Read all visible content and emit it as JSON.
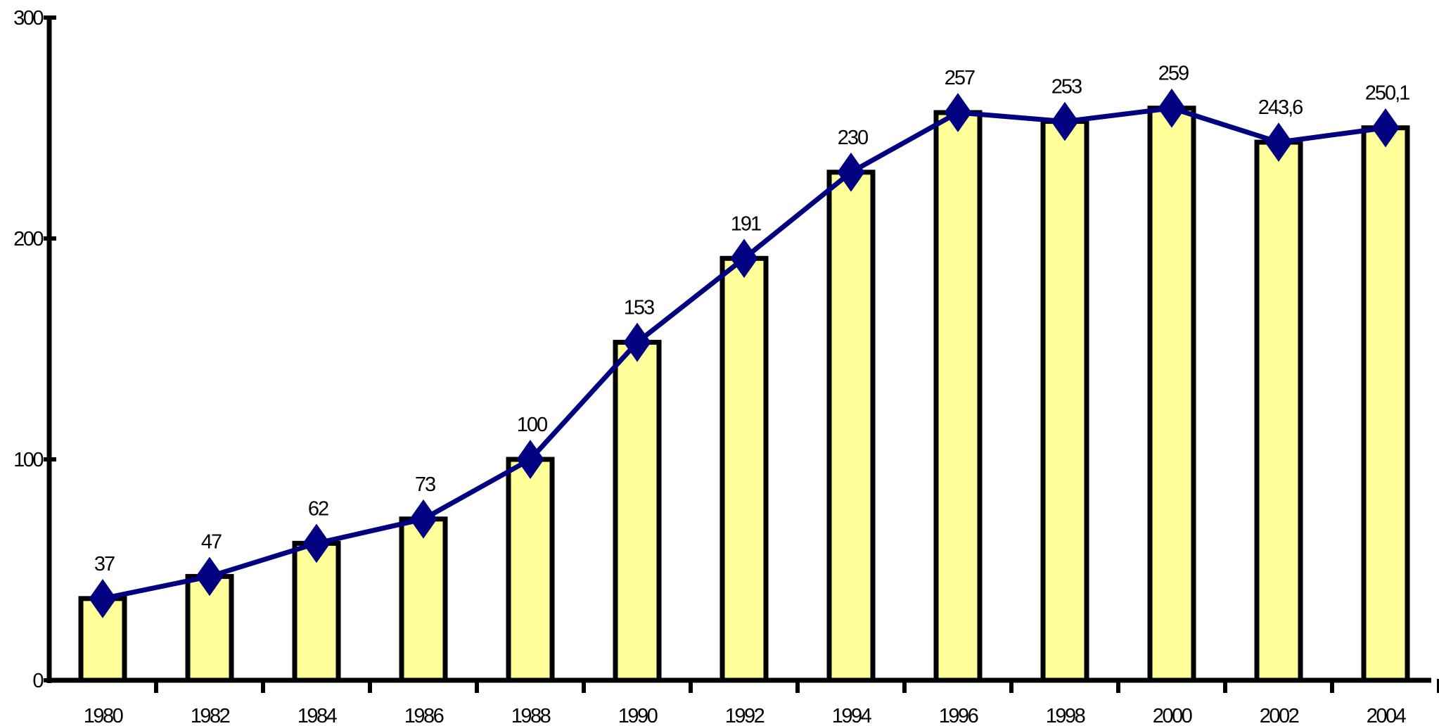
{
  "chart_data": {
    "type": "bar",
    "categories": [
      "1980",
      "1982",
      "1984",
      "1986",
      "1988",
      "1990",
      "1992",
      "1994",
      "1996",
      "1998",
      "2000",
      "2002",
      "2004"
    ],
    "series": [
      {
        "values": [
          37,
          47,
          62,
          73,
          100,
          153,
          191,
          230,
          257,
          253,
          259,
          243.6,
          250.1
        ],
        "value_labels": [
          "37",
          "47",
          "62",
          "73",
          "100",
          "153",
          "191",
          "230",
          "257",
          "253",
          "259",
          "243,6",
          "250,1"
        ],
        "style": "bar+line"
      }
    ],
    "title": "",
    "xlabel": "",
    "ylabel": "",
    "ylim": [
      0,
      300
    ],
    "yticks": [
      "0",
      "100",
      "200",
      "300"
    ],
    "grid": false,
    "legend": "none",
    "colors": {
      "bar_fill": "#ffff99",
      "bar_stroke": "#000000",
      "line": "#000080",
      "marker": "#000080",
      "axis": "#000000"
    }
  }
}
